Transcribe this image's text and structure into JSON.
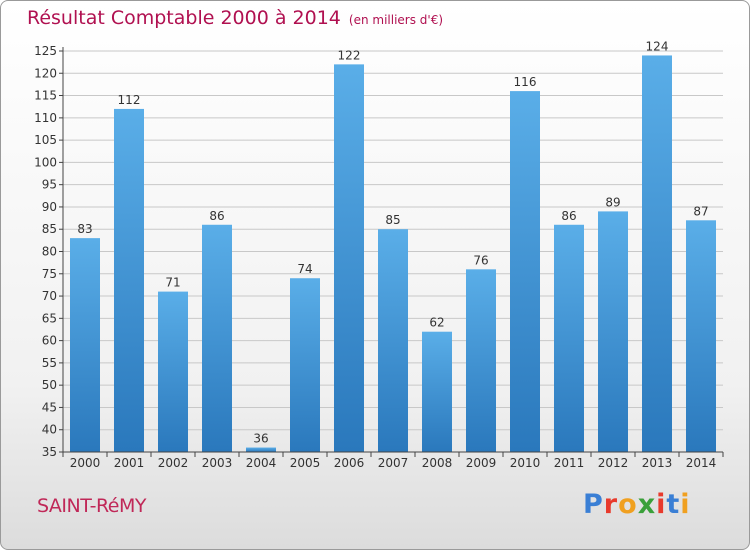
{
  "header": {
    "title": "Résultat Comptable 2000 à 2014",
    "unit": "(en milliers d'€)"
  },
  "footer": {
    "commune": "SAINT-RéMY",
    "brand": {
      "text": "Proxiti",
      "letter_colors": [
        "#3a7fd5",
        "#e83a2c",
        "#f0a020",
        "#3aa03a",
        "#e83a2c",
        "#3a7fd5",
        "#f0a020"
      ]
    }
  },
  "chart_data": {
    "type": "bar",
    "title": "Résultat Comptable 2000 à 2014",
    "xlabel": "",
    "ylabel": "",
    "categories": [
      "2000",
      "2001",
      "2002",
      "2003",
      "2004",
      "2005",
      "2006",
      "2007",
      "2008",
      "2009",
      "2010",
      "2011",
      "2012",
      "2013",
      "2014"
    ],
    "values": [
      83,
      112,
      71,
      86,
      36,
      74,
      122,
      85,
      62,
      76,
      116,
      86,
      89,
      124,
      87
    ],
    "ylim": [
      35,
      125
    ],
    "yticks": [
      35,
      40,
      45,
      50,
      55,
      60,
      65,
      70,
      75,
      80,
      85,
      90,
      95,
      100,
      105,
      110,
      115,
      120,
      125
    ],
    "grid": true,
    "legend": "none",
    "colors": {
      "bar_top": "#5aaee8",
      "bar_bottom": "#2a78bc",
      "grid": "#c8c8c8",
      "axis": "#444444",
      "label": "#333333"
    }
  }
}
